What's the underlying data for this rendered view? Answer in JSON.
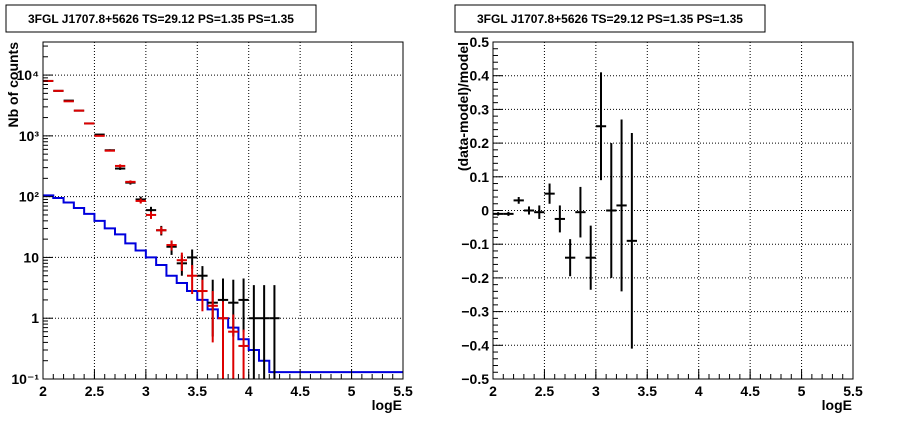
{
  "chart_data": [
    {
      "type": "step",
      "title": "3FGL J1707.8+5626 TS=29.12 PS=1.35 PS=1.35",
      "xlabel": "logE",
      "ylabel": "Nb of counts",
      "xlim": [
        2,
        5.5
      ],
      "ylim": [
        0.1,
        35000
      ],
      "yscale": "log",
      "grid": true,
      "x_ticks": [
        2,
        2.5,
        3,
        3.5,
        4,
        4.5,
        5,
        5.5
      ],
      "x_tick_labels": [
        "2",
        "2.5",
        "3",
        "3.5",
        "4",
        "4.5",
        "5",
        "5.5"
      ],
      "y_ticks": [
        0.1,
        1,
        10,
        100,
        1000,
        10000
      ],
      "y_tick_labels": [
        "10⁻¹",
        "1",
        "10",
        "10²",
        "10³",
        "10⁴"
      ],
      "colors": {
        "data": "#000000",
        "model": "#dd0000",
        "source": "#0000dd"
      },
      "bin_width": 0.1,
      "series": [
        {
          "role": "data",
          "x": [
            2.05,
            2.15,
            2.25,
            2.35,
            2.45,
            2.55,
            2.65,
            2.75,
            2.85,
            2.95,
            3.05,
            3.15,
            3.25,
            3.35,
            3.45,
            3.55,
            3.65,
            3.75,
            3.85,
            3.95,
            4.05,
            4.15,
            4.25
          ],
          "y": [
            8000,
            5500,
            3800,
            2600,
            1600,
            1050,
            580,
            290,
            170,
            90,
            60,
            28,
            15,
            8,
            10,
            5,
            1.8,
            2,
            1.8,
            2,
            1,
            1,
            1
          ],
          "err_low": [
            0,
            0,
            0,
            0,
            0,
            0,
            20,
            15,
            12,
            10,
            8,
            5,
            4,
            3,
            3.5,
            2.2,
            1.3,
            1.4,
            1.3,
            1.4,
            1,
            1,
            1
          ],
          "err_high": [
            0,
            0,
            0,
            0,
            0,
            0,
            20,
            15,
            12,
            10,
            8,
            5,
            4,
            3,
            3.5,
            2.2,
            2.5,
            2.5,
            2.5,
            2.5,
            2.5,
            2.5,
            2.5
          ]
        },
        {
          "role": "model",
          "x": [
            2.05,
            2.15,
            2.25,
            2.35,
            2.45,
            2.55,
            2.65,
            2.75,
            2.85,
            2.95,
            3.05,
            3.15,
            3.25,
            3.35,
            3.45,
            3.55,
            3.65,
            3.75,
            3.85,
            3.95
          ],
          "y": [
            8000,
            5500,
            3700,
            2600,
            1600,
            1000,
            570,
            320,
            175,
            85,
            50,
            28,
            16,
            9,
            5,
            2.8,
            1.6,
            1.0,
            0.6,
            0.35
          ],
          "err_low": [
            0,
            0,
            0,
            0,
            0,
            0,
            0,
            20,
            10,
            8,
            7,
            4,
            3,
            3,
            2.5,
            1.5,
            1.2,
            0.9,
            0.55,
            0.3
          ],
          "err_high": [
            0,
            0,
            0,
            0,
            0,
            0,
            0,
            20,
            10,
            8,
            7,
            4,
            3,
            3,
            2.5,
            1.5,
            1.2,
            0.9,
            0.55,
            0.3
          ]
        },
        {
          "role": "source",
          "edges": [
            2.0,
            2.1,
            2.2,
            2.3,
            2.4,
            2.5,
            2.6,
            2.7,
            2.8,
            2.9,
            3.0,
            3.1,
            3.2,
            3.3,
            3.4,
            3.5,
            3.6,
            3.7,
            3.8,
            3.9,
            4.0,
            4.1,
            4.2,
            5.5
          ],
          "y": [
            105,
            95,
            80,
            65,
            52,
            40,
            30,
            24,
            17,
            13,
            10,
            7.5,
            5,
            3.8,
            2.8,
            2,
            1.4,
            1.0,
            0.7,
            0.45,
            0.3,
            0.2,
            0.13
          ]
        }
      ]
    },
    {
      "type": "scatter",
      "title": "3FGL J1707.8+5626 TS=29.12 PS=1.35 PS=1.35",
      "xlabel": "logE",
      "ylabel": "(data-model)/model",
      "xlim": [
        2,
        5.5
      ],
      "ylim": [
        -0.5,
        0.5
      ],
      "grid": true,
      "x_ticks": [
        2,
        2.5,
        3,
        3.5,
        4,
        4.5,
        5,
        5.5
      ],
      "x_tick_labels": [
        "2",
        "2.5",
        "3",
        "3.5",
        "4",
        "4.5",
        "5",
        "5.5"
      ],
      "y_ticks": [
        -0.5,
        -0.4,
        -0.3,
        -0.2,
        -0.1,
        0,
        0.1,
        0.2,
        0.3,
        0.4,
        0.5
      ],
      "y_tick_labels": [
        "−0.5",
        "−0.4",
        "−0.3",
        "−0.2",
        "−0.1",
        "0",
        "0.1",
        "0.2",
        "0.3",
        "0.4",
        "0.5"
      ],
      "colors": {
        "residual": "#000000"
      },
      "bin_width": 0.1,
      "series": [
        {
          "role": "residual",
          "x": [
            2.05,
            2.15,
            2.25,
            2.35,
            2.45,
            2.55,
            2.65,
            2.75,
            2.85,
            2.95,
            3.05,
            3.15,
            3.25,
            3.35
          ],
          "y": [
            -0.01,
            -0.01,
            0.03,
            0.0,
            -0.005,
            0.05,
            -0.025,
            -0.14,
            -0.005,
            -0.14,
            0.25,
            0.0,
            0.015,
            -0.09
          ],
          "err": [
            0.005,
            0.006,
            0.01,
            0.012,
            0.02,
            0.03,
            0.04,
            0.055,
            0.075,
            0.095,
            0.16,
            0.2,
            0.255,
            0.32
          ]
        }
      ]
    }
  ]
}
